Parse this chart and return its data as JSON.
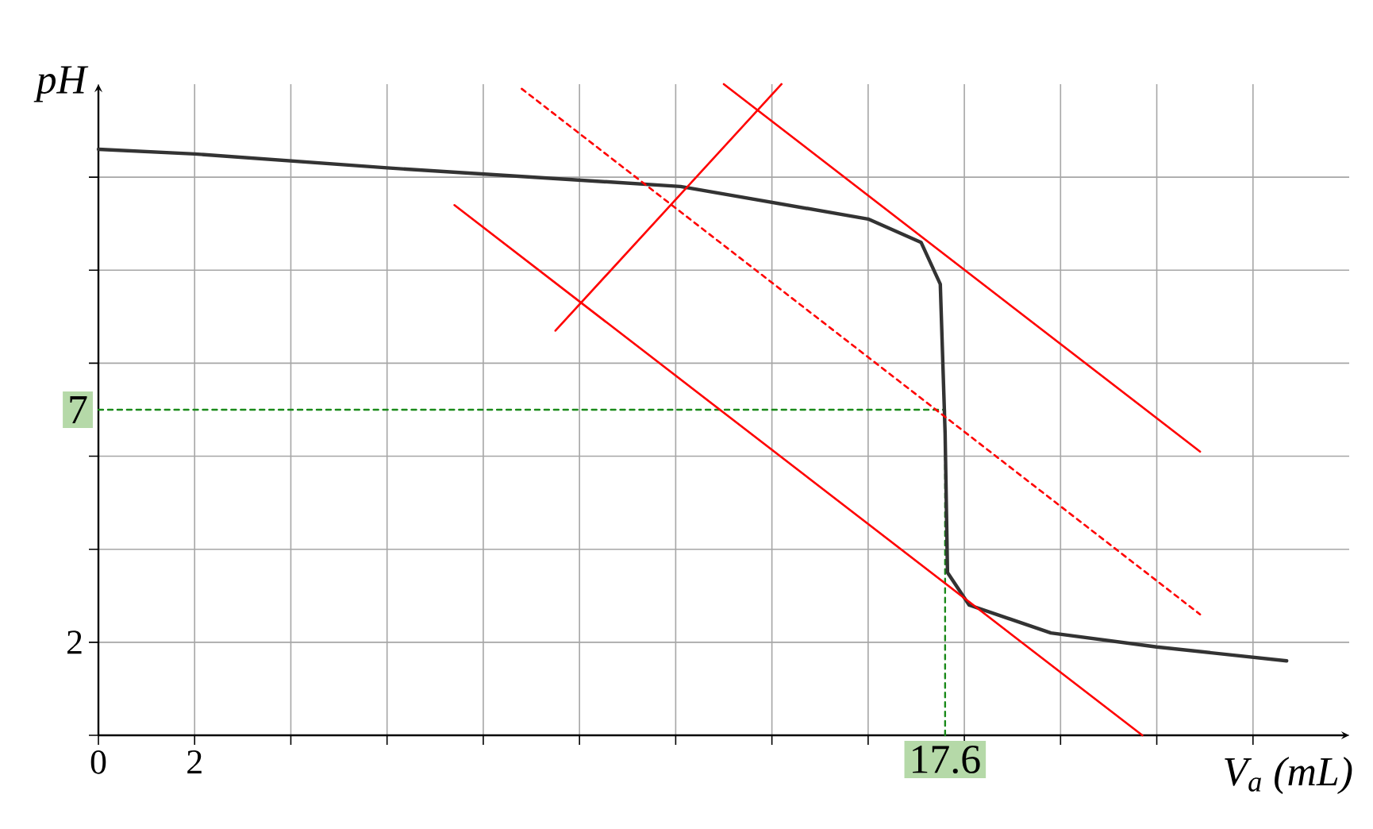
{
  "chart_data": {
    "type": "line",
    "xlabel": "V$_{a}$ (mL)",
    "ylabel": "pH",
    "xlim": [
      0,
      26
    ],
    "ylim": [
      0,
      14
    ],
    "xticks": [
      0,
      2,
      {
        "value": 4,
        "label": null
      },
      {
        "value": 6,
        "label": null
      },
      {
        "value": 8,
        "label": null
      },
      {
        "value": 10,
        "label": null
      },
      {
        "value": 12,
        "label": null
      },
      {
        "value": 14,
        "label": null
      },
      {
        "value": 16,
        "label": null
      },
      17.6,
      {
        "value": 18,
        "label": null
      },
      {
        "value": 20,
        "label": null
      },
      {
        "value": 22,
        "label": null
      },
      {
        "value": 24,
        "label": null
      }
    ],
    "yticks": [
      {
        "value": 0,
        "label": null
      },
      2,
      {
        "value": 4,
        "label": null
      },
      {
        "value": 6,
        "label": null
      },
      7,
      {
        "value": 8,
        "label": null
      },
      {
        "value": 10,
        "label": null
      },
      {
        "value": 12,
        "label": null
      }
    ],
    "grid": true,
    "marker": "none",
    "series": [
      {
        "color": "#333333",
        "line_style": "solid",
        "x": [
          0,
          2,
          6,
          12.1,
          16.0,
          17.1,
          17.5,
          17.6,
          17.65,
          18.1,
          19.8,
          22.0,
          24.7
        ],
        "values": [
          12.6,
          12.5,
          12.2,
          11.8,
          11.1,
          10.6,
          9.7,
          6.5,
          3.5,
          2.8,
          2.2,
          1.9,
          1.6
        ]
      },
      {
        "color": "#ff0000",
        "line_style": "solid",
        "x": [
          13.0,
          22.9
        ],
        "values": [
          14.0,
          6.1
        ]
      },
      {
        "color": "#ff0000",
        "line_style": "dashed",
        "x": [
          8.8,
          22.9
        ],
        "values": [
          13.9,
          2.6
        ]
      },
      {
        "color": "#ff0000",
        "line_style": "solid",
        "x": [
          7.4,
          21.7
        ],
        "values": [
          11.4,
          0
        ]
      },
      {
        "color": "#ff0000",
        "line_style": "solid",
        "x": [
          9.5,
          14.2
        ],
        "values": [
          8.7,
          14.0
        ]
      }
    ],
    "ref_lines": [
      {
        "axis": "y",
        "value": 7,
        "color": "#1a8a1a",
        "line_style": "dashed"
      },
      {
        "axis": "x",
        "value": 17.6,
        "color": "#1a8a1a",
        "line_style": "dashed"
      }
    ]
  }
}
